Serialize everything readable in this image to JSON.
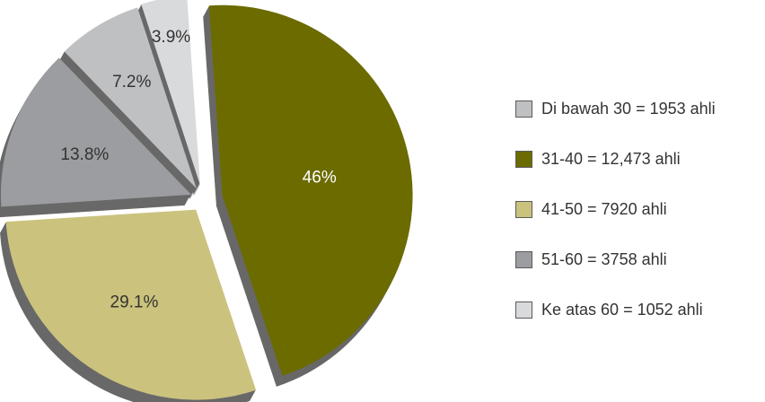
{
  "chart_data": {
    "type": "pie",
    "style": "3d-exploded",
    "slices": [
      {
        "label": "Di bawah 30 = 1953 ahli",
        "value_label": "7.2%",
        "value": 7.2,
        "color": "#bfc0c2"
      },
      {
        "label": "31-40 = 12,473 ahli",
        "value_label": "46%",
        "value": 46,
        "color": "#6b6b00"
      },
      {
        "label": "41-50 = 7920 ahli",
        "value_label": "29.1%",
        "value": 29.1,
        "color": "#cbc27d"
      },
      {
        "label": "51-60 = 3758 ahli",
        "value_label": "13.8%",
        "value": 13.8,
        "color": "#9c9da0"
      },
      {
        "label": "Ke atas 60 = 1052 ahli",
        "value_label": "3.9%",
        "value": 3.9,
        "color": "#d9dadc"
      }
    ],
    "legend_position": "right",
    "value_label_colors": {
      "dark": "#333333",
      "light": "#ffffff"
    }
  }
}
